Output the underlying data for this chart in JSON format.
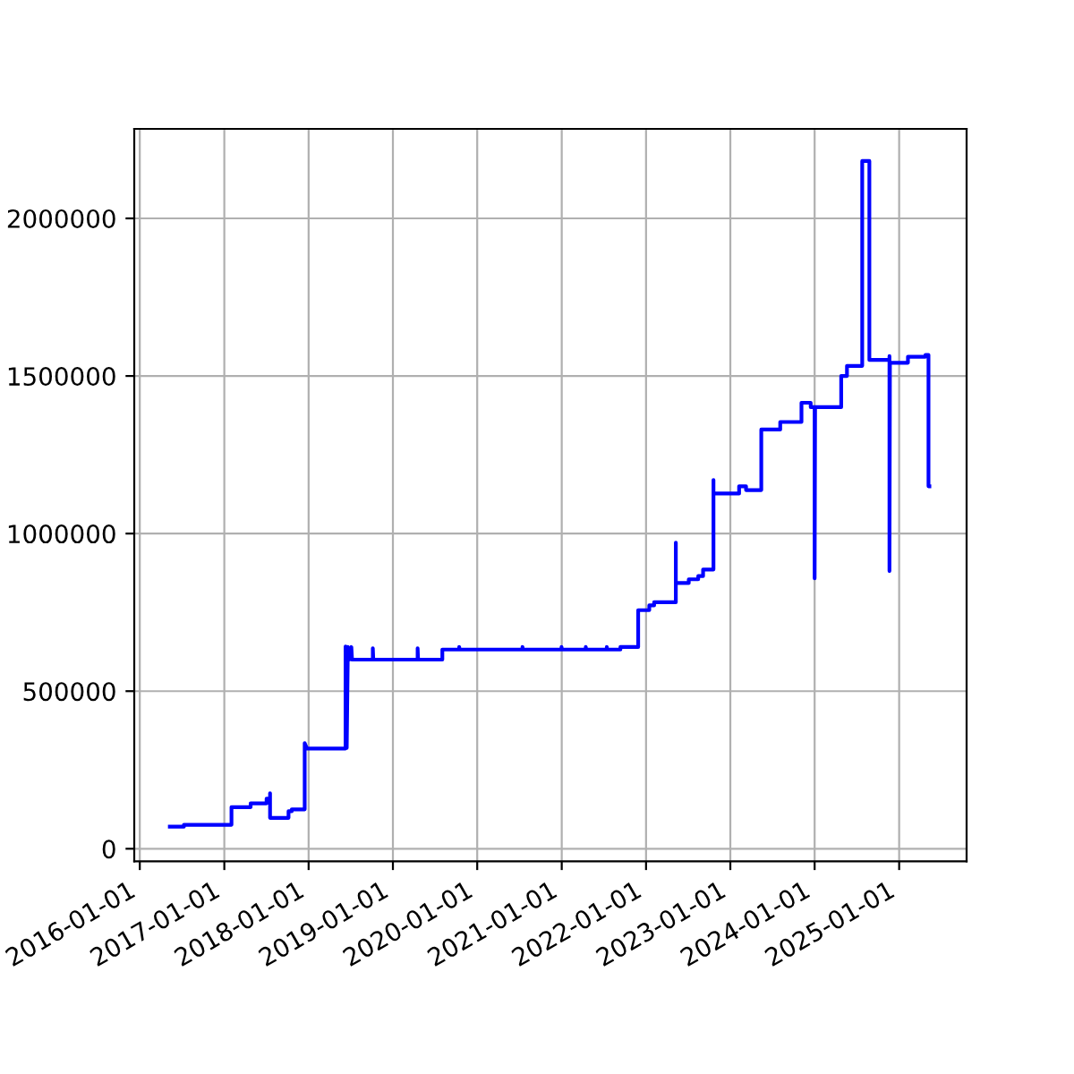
{
  "chart_data": {
    "type": "line",
    "grid": true,
    "marker": "none",
    "line_style": "solid",
    "xlim": [
      "2015-12-08",
      "2025-10-20"
    ],
    "ylim": [
      -40000,
      2284000
    ],
    "xticks": [
      "2016-01-01",
      "2017-01-01",
      "2018-01-01",
      "2019-01-01",
      "2020-01-01",
      "2021-01-01",
      "2022-01-01",
      "2023-01-01",
      "2024-01-01",
      "2025-01-01"
    ],
    "yticks": [
      0,
      500000,
      1000000,
      1500000,
      2000000
    ],
    "series": [
      {
        "color": "#0000ff",
        "x": [
          "2016-05-10",
          "2016-07-10",
          "2016-07-10",
          "2017-02-01",
          "2017-02-01",
          "2017-04-25",
          "2017-04-25",
          "2017-07-03",
          "2017-07-03",
          "2017-07-18",
          "2017-07-18",
          "2017-07-18",
          "2017-10-06",
          "2017-10-06",
          "2017-10-20",
          "2017-10-20",
          "2017-12-15",
          "2017-12-15",
          "2017-12-25",
          "2018-06-10",
          "2018-06-10",
          "2018-06-15",
          "2018-06-20",
          "2018-06-25",
          "2018-07-05",
          "2018-07-08",
          "2018-10-06",
          "2018-10-06",
          "2018-10-08",
          "2019-04-18",
          "2019-04-18",
          "2019-04-20",
          "2019-08-03",
          "2019-08-03",
          "2019-10-15",
          "2019-10-15",
          "2019-10-17",
          "2020-07-15",
          "2020-07-15",
          "2020-07-17",
          "2020-12-31",
          "2020-12-31",
          "2021-01-02",
          "2021-04-15",
          "2021-04-15",
          "2021-04-17",
          "2021-07-15",
          "2021-07-15",
          "2021-07-17",
          "2021-09-12",
          "2021-09-12",
          "2021-11-28",
          "2021-11-28",
          "2022-01-15",
          "2022-01-15",
          "2022-02-05",
          "2022-02-05",
          "2022-05-10",
          "2022-05-10",
          "2022-05-10",
          "2022-07-05",
          "2022-07-05",
          "2022-08-15",
          "2022-08-15",
          "2022-09-05",
          "2022-09-05",
          "2022-10-20",
          "2022-10-20",
          "2022-10-20",
          "2023-02-08",
          "2023-02-08",
          "2023-03-10",
          "2023-03-10",
          "2023-05-15",
          "2023-05-15",
          "2023-08-05",
          "2023-08-05",
          "2023-11-05",
          "2023-11-05",
          "2023-12-15",
          "2023-12-15",
          "2024-01-01",
          "2024-01-01",
          "2024-01-03",
          "2024-04-25",
          "2024-04-25",
          "2024-05-20",
          "2024-05-20",
          "2024-07-25",
          "2024-07-25",
          "2024-08-25",
          "2024-08-25",
          "2024-11-20",
          "2024-11-20",
          "2024-11-20",
          "2024-11-22",
          "2025-02-08",
          "2025-02-08",
          "2025-04-25",
          "2025-04-25",
          "2025-05-08",
          "2025-05-08",
          "2025-05-12"
        ],
        "values": [
          70000,
          70000,
          76000,
          76000,
          132000,
          132000,
          144000,
          144000,
          159000,
          159000,
          176000,
          98000,
          98000,
          119000,
          119000,
          125000,
          125000,
          335000,
          318000,
          318000,
          642000,
          320000,
          640000,
          600000,
          640000,
          600000,
          600000,
          636000,
          600000,
          600000,
          636000,
          600000,
          600000,
          632000,
          632000,
          640000,
          632000,
          632000,
          640000,
          632000,
          632000,
          640000,
          632000,
          632000,
          640000,
          632000,
          632000,
          640000,
          632000,
          632000,
          640000,
          640000,
          757000,
          757000,
          772000,
          772000,
          782000,
          782000,
          971000,
          843000,
          843000,
          855000,
          855000,
          865000,
          865000,
          886000,
          886000,
          1170000,
          1127000,
          1127000,
          1150000,
          1150000,
          1138000,
          1138000,
          1330000,
          1330000,
          1354000,
          1354000,
          1415000,
          1415000,
          1401000,
          1401000,
          858000,
          1401000,
          1401000,
          1500000,
          1500000,
          1532000,
          1532000,
          2182000,
          2182000,
          1551000,
          1551000,
          1563000,
          881000,
          1542000,
          1542000,
          1561000,
          1561000,
          1567000,
          1567000,
          1150000,
          1150000
        ]
      }
    ]
  }
}
